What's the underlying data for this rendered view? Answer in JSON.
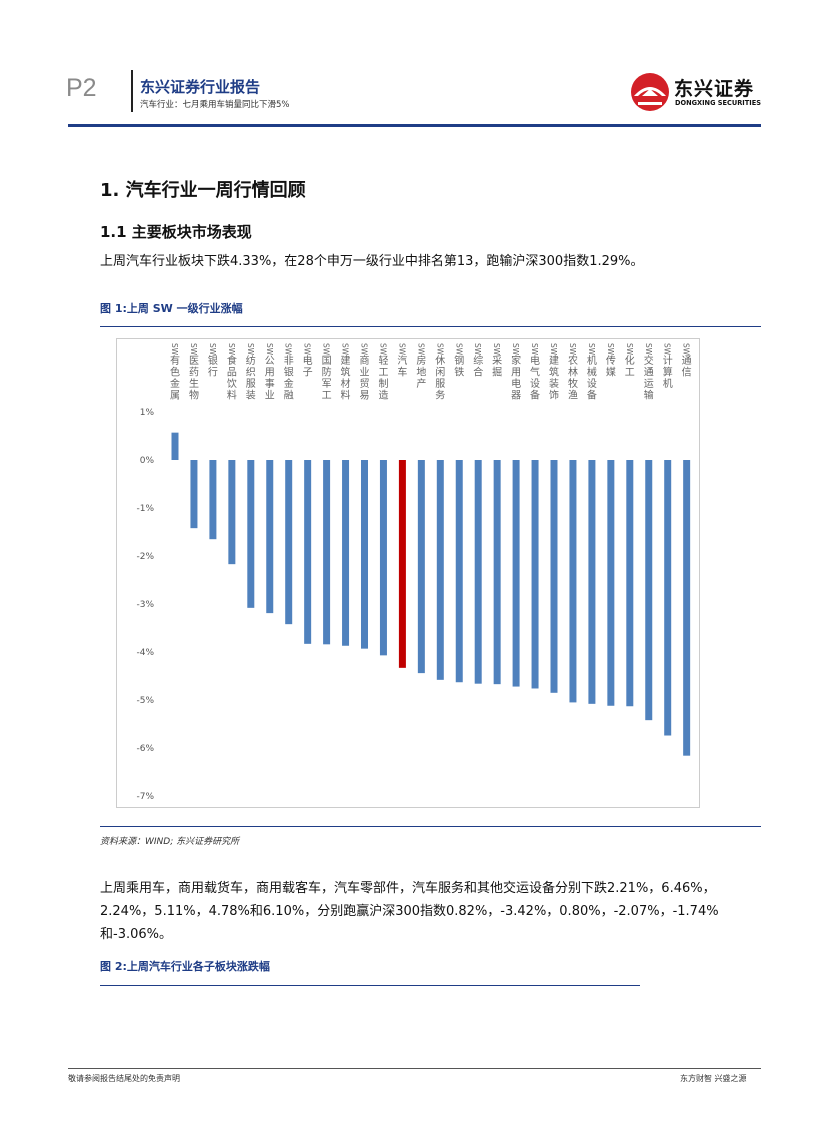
{
  "header": {
    "page_number": "P2",
    "report_title": "东兴证券行业报告",
    "report_subtitle": "汽车行业：七月乘用车销量同比下滑5%",
    "logo_cn": "东兴证券",
    "logo_en": "DONGXING SECURITIES",
    "brand_color": "#1f3d86",
    "logo_color": "#d32027"
  },
  "section": {
    "h1": "1. 汽车行业一周行情回顾",
    "h2": "1.1 主要板块市场表现",
    "para1": "上周汽车行业板块下跌4.33%，在28个申万一级行业中排名第13，跑输沪深300指数1.29%。",
    "figure1_title": "图 1:上周 SW 一级行业涨幅",
    "source": "资料来源：WIND; 东兴证券研究所",
    "para2_lines": [
      "上周乘用车，商用载货车，商用载客车，汽车零部件，汽车服务和其他交运设备分别下跌2.21%，6.46%，",
      "2.24%，5.11%，4.78%和6.10%，分别跑赢沪深300指数0.82%，-3.42%，0.80%，-2.07%，-1.74%",
      "和-3.06%。"
    ],
    "figure2_title": "图 2:上周汽车行业各子板块涨跌幅"
  },
  "footer": {
    "left": "敬请参阅报告结尾处的免责声明",
    "right": "东方财智 兴盛之源"
  },
  "chart_data": {
    "type": "bar",
    "categories": [
      "SW有色金属",
      "SW医药生物",
      "SW银行",
      "SW食品饮料",
      "SW纺织服装",
      "SW公用事业",
      "SW非银金融",
      "SW电子",
      "SW国防军工",
      "SW建筑材料",
      "SW商业贸易",
      "SW轻工制造",
      "SW汽车",
      "SW房地产",
      "SW休闲服务",
      "SW钢铁",
      "SW综合",
      "SW采掘",
      "SW家用电器",
      "SW电气设备",
      "SW建筑装饰",
      "SW农林牧渔",
      "SW机械设备",
      "SW传媒",
      "SW化工",
      "SW交通运输",
      "SW计算机",
      "SW通信"
    ],
    "values": [
      0.57,
      -1.42,
      -1.65,
      -2.17,
      -3.08,
      -3.19,
      -3.42,
      -3.83,
      -3.84,
      -3.87,
      -3.93,
      -4.07,
      -4.33,
      -4.44,
      -4.58,
      -4.63,
      -4.66,
      -4.67,
      -4.72,
      -4.76,
      -4.85,
      -5.05,
      -5.08,
      -5.12,
      -5.13,
      -5.42,
      -5.74,
      -6.16
    ],
    "yticks": [
      "1%",
      "0%",
      "-1%",
      "-2%",
      "-3%",
      "-4%",
      "-5%",
      "-6%",
      "-7%"
    ],
    "ylim": [
      -7,
      1
    ],
    "bar_color": "#4f81bd",
    "highlight_color": "#c00000",
    "highlight_category": "SW汽车"
  }
}
